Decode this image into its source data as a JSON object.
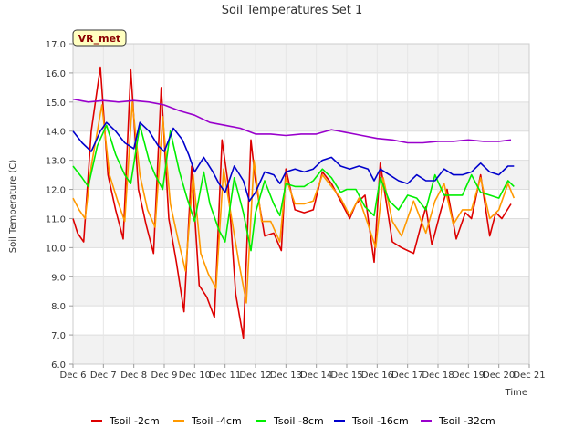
{
  "chart_data": {
    "type": "line",
    "title": "Soil Temperatures Set 1",
    "xlabel": "Time",
    "ylabel": "Soil Temperature (C)",
    "xlim": [
      6,
      21
    ],
    "ylim": [
      6.0,
      17.0
    ],
    "x_ticks": [
      6,
      7,
      8,
      9,
      10,
      11,
      12,
      13,
      14,
      15,
      16,
      17,
      18,
      19,
      20,
      21
    ],
    "x_tick_labels": [
      "Dec 6",
      "Dec 7",
      "Dec 8",
      "Dec 9",
      "Dec 10",
      "Dec 11",
      "Dec 12",
      "Dec 13",
      "Dec 14",
      "Dec 15",
      "Dec 16",
      "Dec 17",
      "Dec 18",
      "Dec 19",
      "Dec 20",
      "Dec 21"
    ],
    "y_ticks": [
      6,
      7,
      8,
      9,
      10,
      11,
      12,
      13,
      14,
      15,
      16,
      17
    ],
    "y_tick_labels": [
      "6.0",
      "7.0",
      "8.0",
      "9.0",
      "10.0",
      "11.0",
      "12.0",
      "13.0",
      "14.0",
      "15.0",
      "16.0",
      "17.0"
    ],
    "grid": true,
    "legend_position": "bottom",
    "station_label": "VR_met",
    "series": [
      {
        "name": "Tsoil -2cm",
        "color": "#dd0000",
        "x": [
          6.0,
          6.15,
          6.35,
          6.6,
          6.9,
          7.15,
          7.4,
          7.65,
          7.9,
          8.15,
          8.4,
          8.65,
          8.9,
          9.15,
          9.4,
          9.65,
          9.9,
          10.15,
          10.4,
          10.65,
          10.9,
          11.1,
          11.35,
          11.6,
          11.85,
          12.0,
          12.3,
          12.6,
          12.85,
          13.0,
          13.3,
          13.6,
          13.9,
          14.2,
          14.5,
          14.8,
          15.1,
          15.3,
          15.6,
          15.9,
          16.1,
          16.5,
          16.8,
          17.2,
          17.6,
          17.8,
          18.1,
          18.3,
          18.6,
          18.9,
          19.1,
          19.4,
          19.7,
          19.9,
          20.1,
          20.4
        ],
        "y": [
          11.0,
          10.5,
          10.2,
          14.0,
          16.2,
          12.5,
          11.3,
          10.3,
          16.1,
          12.0,
          10.8,
          9.8,
          15.5,
          11.0,
          9.5,
          7.8,
          12.8,
          8.7,
          8.3,
          7.6,
          13.7,
          12.2,
          8.4,
          6.9,
          13.7,
          12.3,
          10.4,
          10.5,
          9.9,
          12.7,
          11.3,
          11.2,
          11.3,
          12.6,
          12.2,
          11.6,
          11.0,
          11.5,
          11.8,
          9.5,
          12.9,
          10.2,
          10.0,
          9.8,
          11.4,
          10.1,
          11.3,
          12.0,
          10.3,
          11.2,
          11.0,
          12.5,
          10.4,
          11.2,
          11.0,
          11.5
        ]
      },
      {
        "name": "Tsoil -4cm",
        "color": "#ff9900",
        "x": [
          6.0,
          6.2,
          6.4,
          6.6,
          6.95,
          7.2,
          7.5,
          7.7,
          7.95,
          8.2,
          8.45,
          8.7,
          8.95,
          9.2,
          9.45,
          9.7,
          9.95,
          10.2,
          10.45,
          10.7,
          10.95,
          11.2,
          11.45,
          11.7,
          11.95,
          12.2,
          12.5,
          12.8,
          13.0,
          13.3,
          13.6,
          13.9,
          14.2,
          14.5,
          14.8,
          15.1,
          15.4,
          15.7,
          15.95,
          16.2,
          16.5,
          16.8,
          17.2,
          17.6,
          17.9,
          18.2,
          18.5,
          18.8,
          19.1,
          19.4,
          19.7,
          20.0,
          20.3,
          20.5
        ],
        "y": [
          11.7,
          11.3,
          11.0,
          12.8,
          14.9,
          12.5,
          11.5,
          10.9,
          15.0,
          12.5,
          11.3,
          10.7,
          14.5,
          11.5,
          10.3,
          9.2,
          12.5,
          9.8,
          9.1,
          8.6,
          12.7,
          11.1,
          9.5,
          8.1,
          13.0,
          10.9,
          10.9,
          10.2,
          12.4,
          11.5,
          11.5,
          11.6,
          12.5,
          12.1,
          11.7,
          11.1,
          11.7,
          10.8,
          10.0,
          12.4,
          10.9,
          10.4,
          11.6,
          10.5,
          11.6,
          12.2,
          10.8,
          11.3,
          11.3,
          12.4,
          11.0,
          11.3,
          12.2,
          11.7
        ]
      },
      {
        "name": "Tsoil -8cm",
        "color": "#00ee00",
        "x": [
          6.0,
          6.3,
          6.5,
          6.8,
          7.1,
          7.4,
          7.7,
          7.9,
          8.2,
          8.5,
          8.7,
          8.95,
          9.2,
          9.5,
          9.75,
          10.0,
          10.3,
          10.5,
          10.8,
          11.0,
          11.3,
          11.6,
          11.85,
          12.0,
          12.3,
          12.6,
          12.8,
          13.0,
          13.3,
          13.6,
          13.9,
          14.2,
          14.5,
          14.8,
          15.0,
          15.3,
          15.6,
          15.9,
          16.1,
          16.4,
          16.7,
          17.0,
          17.3,
          17.6,
          17.9,
          18.2,
          18.5,
          18.8,
          19.1,
          19.4,
          19.7,
          20.0,
          20.3,
          20.5
        ],
        "y": [
          12.8,
          12.4,
          12.1,
          13.5,
          14.2,
          13.2,
          12.5,
          12.2,
          14.2,
          13.0,
          12.5,
          12.0,
          14.0,
          12.6,
          11.7,
          10.9,
          12.6,
          11.5,
          10.6,
          10.2,
          12.4,
          11.2,
          9.9,
          11.2,
          12.3,
          11.5,
          11.1,
          12.2,
          12.1,
          12.1,
          12.3,
          12.7,
          12.4,
          11.9,
          12.0,
          12.0,
          11.4,
          11.1,
          12.4,
          11.6,
          11.3,
          11.8,
          11.7,
          11.3,
          12.5,
          11.8,
          11.8,
          11.8,
          12.5,
          11.9,
          11.8,
          11.7,
          12.3,
          12.1
        ]
      },
      {
        "name": "Tsoil -16cm",
        "color": "#0000cc",
        "x": [
          6.0,
          6.3,
          6.6,
          6.9,
          7.1,
          7.4,
          7.7,
          8.0,
          8.2,
          8.5,
          8.8,
          9.0,
          9.3,
          9.6,
          9.8,
          10.0,
          10.3,
          10.6,
          10.8,
          11.0,
          11.3,
          11.6,
          11.8,
          12.0,
          12.3,
          12.6,
          12.8,
          13.0,
          13.3,
          13.6,
          13.9,
          14.2,
          14.5,
          14.8,
          15.1,
          15.4,
          15.7,
          15.9,
          16.1,
          16.4,
          16.7,
          17.0,
          17.3,
          17.6,
          17.9,
          18.2,
          18.5,
          18.8,
          19.1,
          19.4,
          19.7,
          20.0,
          20.3,
          20.5
        ],
        "y": [
          14.0,
          13.6,
          13.3,
          14.0,
          14.3,
          14.0,
          13.6,
          13.4,
          14.3,
          14.0,
          13.5,
          13.3,
          14.1,
          13.7,
          13.2,
          12.6,
          13.1,
          12.6,
          12.2,
          11.9,
          12.8,
          12.3,
          11.6,
          11.9,
          12.6,
          12.5,
          12.2,
          12.6,
          12.7,
          12.6,
          12.7,
          13.0,
          13.1,
          12.8,
          12.7,
          12.8,
          12.7,
          12.3,
          12.7,
          12.5,
          12.3,
          12.2,
          12.5,
          12.3,
          12.3,
          12.7,
          12.5,
          12.5,
          12.6,
          12.9,
          12.6,
          12.5,
          12.8,
          12.8
        ]
      },
      {
        "name": "Tsoil -32cm",
        "color": "#9900cc",
        "x": [
          6.0,
          6.5,
          7.0,
          7.5,
          8.0,
          8.5,
          9.0,
          9.5,
          10.0,
          10.5,
          11.0,
          11.5,
          12.0,
          12.5,
          13.0,
          13.5,
          14.0,
          14.5,
          15.0,
          15.5,
          16.0,
          16.5,
          17.0,
          17.5,
          18.0,
          18.5,
          19.0,
          19.5,
          20.0,
          20.4
        ],
        "y": [
          15.1,
          15.0,
          15.05,
          15.0,
          15.05,
          15.0,
          14.9,
          14.7,
          14.55,
          14.3,
          14.2,
          14.1,
          13.9,
          13.9,
          13.85,
          13.9,
          13.9,
          14.05,
          13.95,
          13.85,
          13.75,
          13.7,
          13.6,
          13.6,
          13.65,
          13.65,
          13.7,
          13.65,
          13.65,
          13.7
        ]
      }
    ]
  }
}
